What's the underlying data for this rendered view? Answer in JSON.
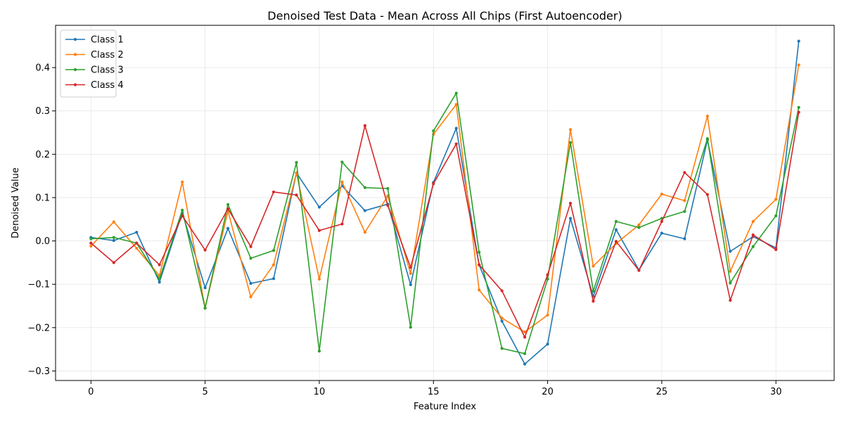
{
  "chart_data": {
    "type": "line",
    "title": "Denoised Test Data - Mean Across All Chips (First Autoencoder)",
    "xlabel": "Feature Index",
    "ylabel": "Denoised Value",
    "xlim": [
      -1.55,
      32.55
    ],
    "ylim": [
      -0.322,
      0.4975
    ],
    "xticks": [
      0,
      5,
      10,
      15,
      20,
      25,
      30
    ],
    "yticks": [
      -0.3,
      -0.2,
      -0.1,
      0.0,
      0.1,
      0.2,
      0.3,
      0.4
    ],
    "ytick_labels": [
      "−0.3",
      "−0.2",
      "−0.1",
      "0.0",
      "0.1",
      "0.2",
      "0.3",
      "0.4"
    ],
    "grid": true,
    "legend_position": "upper left",
    "x": [
      0,
      1,
      2,
      3,
      4,
      5,
      6,
      7,
      8,
      9,
      10,
      11,
      12,
      13,
      14,
      15,
      16,
      17,
      18,
      19,
      20,
      21,
      22,
      23,
      24,
      25,
      26,
      27,
      28,
      29,
      30,
      31
    ],
    "series": [
      {
        "name": "Class 1",
        "color": "#1f77b4",
        "values": [
          0.008,
          0.001,
          0.02,
          -0.095,
          0.065,
          -0.108,
          0.029,
          -0.098,
          -0.087,
          0.157,
          0.078,
          0.127,
          0.07,
          0.085,
          -0.101,
          0.135,
          0.26,
          -0.055,
          -0.185,
          -0.284,
          -0.238,
          0.052,
          -0.128,
          0.026,
          -0.067,
          0.018,
          0.005,
          0.233,
          -0.024,
          0.01,
          -0.016,
          0.461
        ]
      },
      {
        "name": "Class 2",
        "color": "#ff7f0e",
        "values": [
          -0.012,
          0.044,
          -0.017,
          -0.08,
          0.136,
          -0.155,
          0.069,
          -0.129,
          -0.055,
          0.157,
          -0.088,
          0.136,
          0.02,
          0.104,
          -0.075,
          0.246,
          0.315,
          -0.113,
          -0.178,
          -0.21,
          -0.171,
          0.257,
          -0.058,
          -0.006,
          0.037,
          0.108,
          0.093,
          0.288,
          -0.07,
          0.045,
          0.096,
          0.406
        ]
      },
      {
        "name": "Class 3",
        "color": "#2ca02c",
        "values": [
          0.005,
          0.008,
          -0.005,
          -0.088,
          0.071,
          -0.155,
          0.084,
          -0.04,
          -0.022,
          0.181,
          -0.254,
          0.182,
          0.123,
          0.121,
          -0.199,
          0.254,
          0.341,
          -0.026,
          -0.248,
          -0.26,
          -0.088,
          0.227,
          -0.116,
          0.045,
          0.031,
          0.052,
          0.068,
          0.236,
          -0.097,
          -0.013,
          0.058,
          0.308
        ]
      },
      {
        "name": "Class 4",
        "color": "#d62728",
        "values": [
          -0.005,
          -0.05,
          -0.005,
          -0.055,
          0.058,
          -0.021,
          0.074,
          -0.013,
          0.113,
          0.106,
          0.024,
          0.039,
          0.266,
          0.082,
          -0.061,
          0.132,
          0.224,
          -0.055,
          -0.115,
          -0.222,
          -0.078,
          0.087,
          -0.139,
          -0.001,
          -0.068,
          0.045,
          0.158,
          0.107,
          -0.137,
          0.014,
          -0.02,
          0.297
        ]
      }
    ]
  }
}
